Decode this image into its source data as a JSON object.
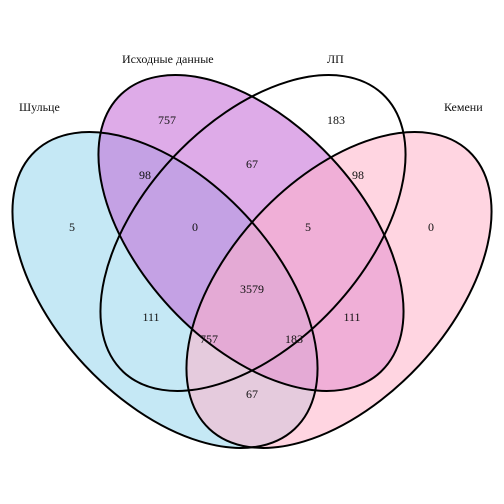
{
  "diagram": {
    "type": "venn-4-set",
    "sets": [
      {
        "id": "shultse",
        "name": "Шульце",
        "color": "#b7e2f3",
        "opacity": 0.8
      },
      {
        "id": "source",
        "name": "Исходные данные",
        "color": "#c266d6",
        "opacity": 0.55
      },
      {
        "id": "lp",
        "name": "ЛП",
        "color": "#ffffff",
        "opacity": 0.0
      },
      {
        "id": "kemeni",
        "name": "Кемени",
        "color": "#ffb3c8",
        "opacity": 0.55
      }
    ],
    "regions": [
      {
        "sets": [
          "source"
        ],
        "count": "757"
      },
      {
        "sets": [
          "lp"
        ],
        "count": "183"
      },
      {
        "sets": [
          "shultse"
        ],
        "count": "5"
      },
      {
        "sets": [
          "kemeni"
        ],
        "count": "0"
      },
      {
        "sets": [
          "shultse",
          "source"
        ],
        "count": "98"
      },
      {
        "sets": [
          "source",
          "lp"
        ],
        "count": "67"
      },
      {
        "sets": [
          "lp",
          "kemeni"
        ],
        "count": "98"
      },
      {
        "sets": [
          "shultse",
          "source",
          "lp"
        ],
        "count": "0"
      },
      {
        "sets": [
          "source",
          "lp",
          "kemeni"
        ],
        "count": "5"
      },
      {
        "sets": [
          "shultse",
          "source",
          "lp",
          "kemeni"
        ],
        "count": "3579"
      },
      {
        "sets": [
          "shultse",
          "lp"
        ],
        "count": "111"
      },
      {
        "sets": [
          "source",
          "kemeni"
        ],
        "count": "111"
      },
      {
        "sets": [
          "shultse",
          "lp",
          "kemeni"
        ],
        "count": "757"
      },
      {
        "sets": [
          "shultse",
          "source",
          "kemeni"
        ],
        "count": "183"
      },
      {
        "sets": [
          "shultse",
          "kemeni"
        ],
        "count": "67"
      }
    ]
  }
}
